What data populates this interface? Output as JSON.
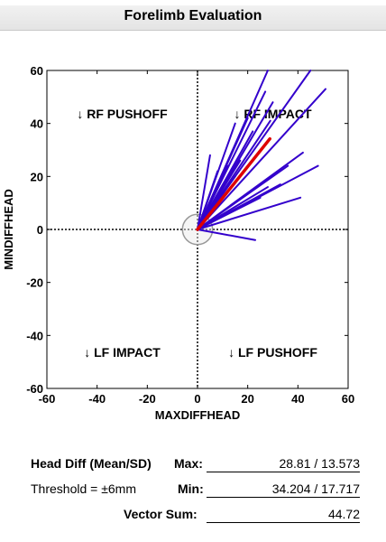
{
  "window": {
    "title": "Forelimb Evaluation"
  },
  "chart_data": {
    "type": "scatter",
    "xlabel": "MAXDIFFHEAD",
    "ylabel": "MINDIFFHEAD",
    "xlim": [
      -60,
      60
    ],
    "ylim": [
      -60,
      60
    ],
    "xticks": [
      "-60",
      "-40",
      "-20",
      "0",
      "20",
      "40",
      "60"
    ],
    "yticks": [
      "60",
      "40",
      "20",
      "0",
      "-20",
      "-40",
      "-60"
    ],
    "quadrants": {
      "top_left": "↓ RF PUSHOFF",
      "top_right": "↓ RF IMPACT",
      "bottom_left": "↓ LF IMPACT",
      "bottom_right": "↓ LF PUSHOFF"
    },
    "threshold_radius": 6,
    "grid": false,
    "series": [
      {
        "color": "#3300cc",
        "vectors": [
          [
            28,
            60
          ],
          [
            27,
            52
          ],
          [
            30,
            48
          ],
          [
            45,
            60
          ],
          [
            51,
            53
          ],
          [
            29,
            41
          ],
          [
            20,
            42
          ],
          [
            15,
            40
          ],
          [
            22,
            37
          ],
          [
            42,
            29
          ],
          [
            48,
            24
          ],
          [
            41,
            12
          ],
          [
            23,
            -4
          ],
          [
            5,
            28
          ],
          [
            12,
            24
          ],
          [
            17,
            26
          ],
          [
            28,
            16
          ],
          [
            25,
            12
          ],
          [
            36,
            24
          ],
          [
            15,
            20
          ],
          [
            33,
            17
          ],
          [
            8,
            22
          ]
        ]
      },
      {
        "color": "#dd0000",
        "vectors": [
          [
            28.81,
            34.204
          ]
        ]
      }
    ]
  },
  "stats": {
    "head_diff_label": "Head Diff (Mean/SD)",
    "max_label": "Max:",
    "max_value": "28.81 / 13.573",
    "threshold_label": "Threshold = ±6mm",
    "min_label": "Min:",
    "min_value": "34.204 / 17.717",
    "vector_sum_label": "Vector Sum:",
    "vector_sum_value": "44.72"
  },
  "colors": {
    "vector": "#3300cc",
    "highlight": "#dd0000",
    "threshold": "#999999"
  }
}
